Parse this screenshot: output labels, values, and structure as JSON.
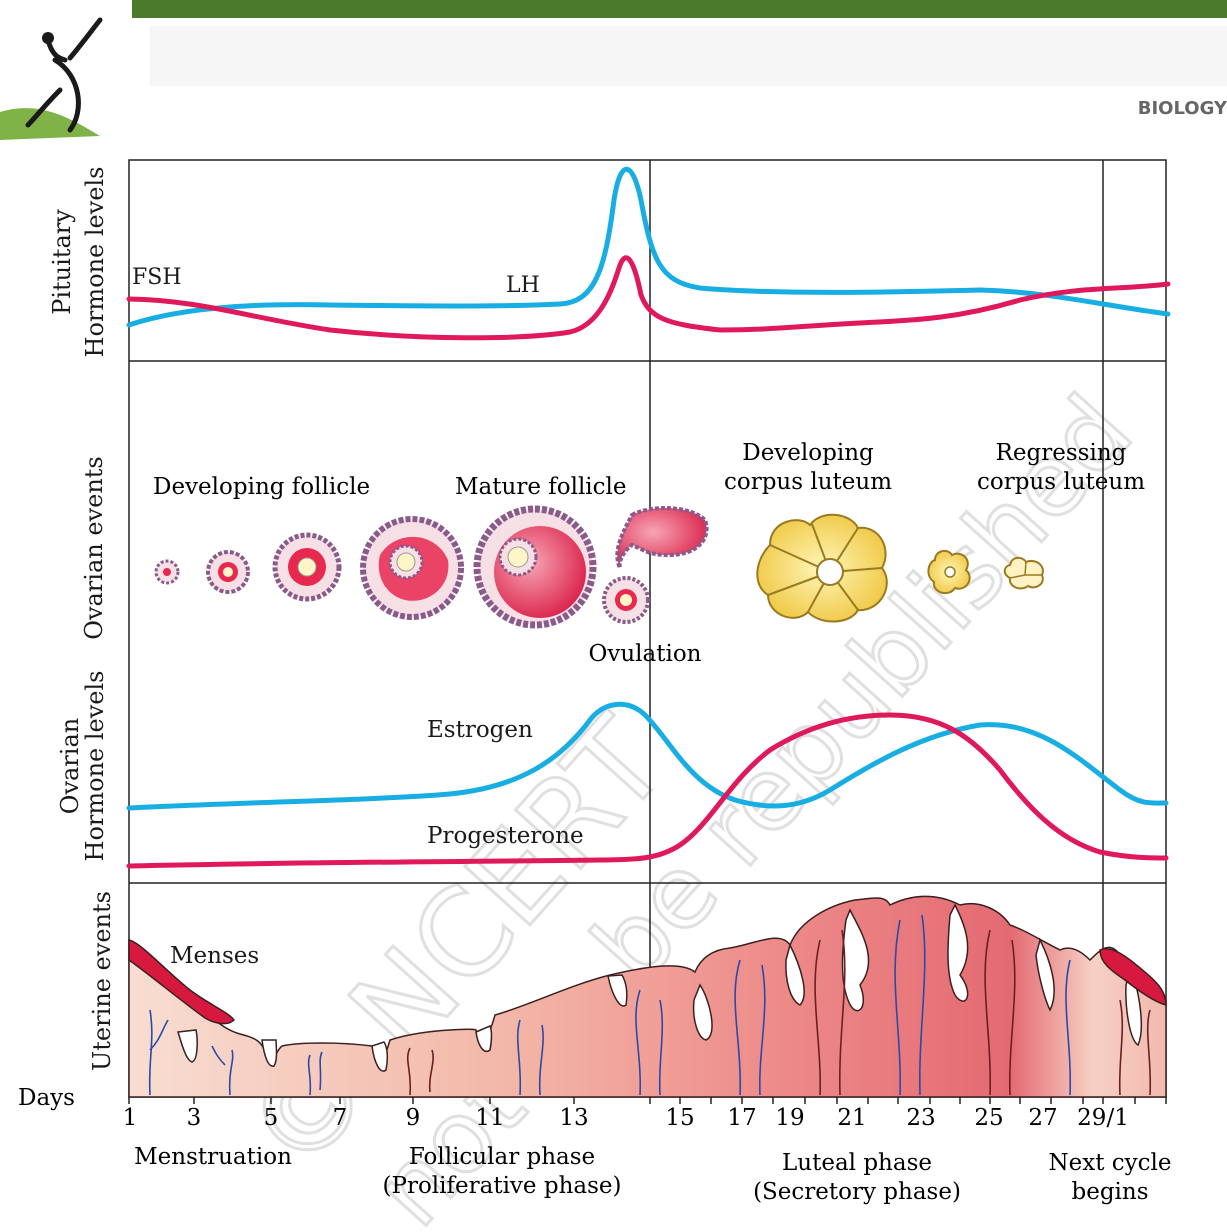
{
  "header": {
    "running_head": "BIOLOGY",
    "band_color": "#4a7a2c"
  },
  "colors": {
    "blue_curve": "#19aee3",
    "red_curve": "#e0195a",
    "frame": "#222222",
    "follicle_pink": "#e8284f",
    "corpus_yellow": "#f3d44a",
    "uterine_pink": "#ef8a8a",
    "vessel_blue": "#2a4aa8",
    "vessel_brown": "#6a2020",
    "watermark": "#e2e2e2"
  },
  "panels": {
    "pituitary": {
      "label_line1": "Pituitary",
      "label_line2": "Hormone levels"
    },
    "ovarian_events": {
      "label": "Ovarian events"
    },
    "ovarian_hormones": {
      "label_line1": "Ovarian",
      "label_line2": "Hormone levels"
    },
    "uterine_events": {
      "label": "Uterine events"
    }
  },
  "labels": {
    "fsh": "FSH",
    "lh": "LH",
    "developing_follicle": "Developing follicle",
    "mature_follicle": "Mature follicle",
    "ovulation": "Ovulation",
    "developing_corpus_luteum_1": "Developing",
    "developing_corpus_luteum_2": "corpus luteum",
    "regressing_corpus_luteum_1": "Regressing",
    "regressing_corpus_luteum_2": "corpus luteum",
    "estrogen": "Estrogen",
    "progesterone": "Progesterone",
    "menses": "Menses"
  },
  "axis": {
    "title": "Days",
    "ticks": [
      "1",
      "3",
      "5",
      "7",
      "9",
      "11",
      "13",
      "15",
      "17",
      "19",
      "21",
      "23",
      "25",
      "27",
      "29/1"
    ]
  },
  "phases": {
    "menstruation": "Menstruation",
    "follicular_1": "Follicular phase",
    "follicular_2": "(Proliferative phase)",
    "luteal_1": "Luteal phase",
    "luteal_2": "(Secretory phase)",
    "next_1": "Next cycle",
    "next_2": "begins"
  },
  "watermark": {
    "line1": "© NCERT",
    "line2": "not to be republished"
  }
}
